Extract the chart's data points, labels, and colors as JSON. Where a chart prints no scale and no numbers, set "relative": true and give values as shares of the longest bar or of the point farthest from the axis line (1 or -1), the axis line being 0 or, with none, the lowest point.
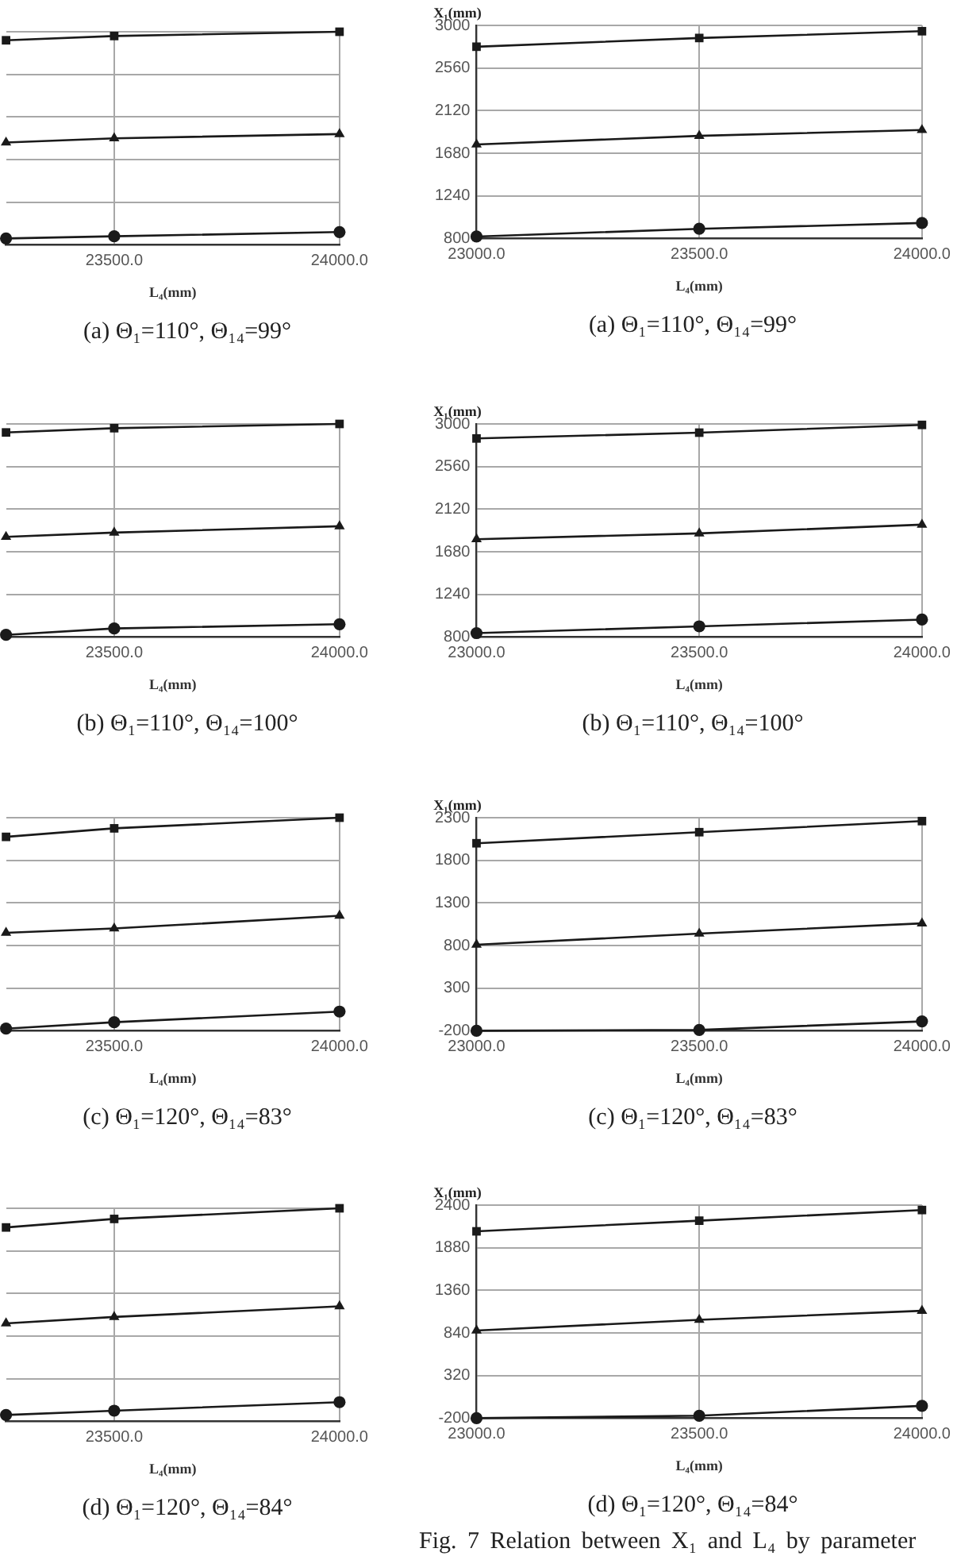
{
  "chart_data": [
    {
      "type": "line",
      "relative": true,
      "title": "(a) Θ₁=110°, Θ₁₄=99°",
      "xlabel": "L₄(mm)",
      "x": [
        23260,
        23500,
        24000
      ],
      "xlim": [
        23260,
        24000
      ],
      "xticks": [
        {
          "value": 23500,
          "label": "23500.0"
        },
        {
          "value": 24000,
          "label": "24000.0"
        }
      ],
      "grid": true,
      "series": [
        {
          "color": "#1a1a1a",
          "marker": "square",
          "values": [
            0.96,
            0.98,
            1
          ]
        },
        {
          "color": "#1a1a1a",
          "marker": "triangle",
          "values": [
            0.48,
            0.5,
            0.52
          ]
        },
        {
          "color": "#1a1a1a",
          "marker": "circle",
          "values": [
            0.03,
            0.04,
            0.06
          ]
        }
      ]
    },
    {
      "type": "line",
      "title": "(a) Θ₁=110°, Θ₁₄=99°",
      "xlabel": "L₄(mm)",
      "ylabel": "X₁(mm)",
      "x": [
        23000,
        23500,
        24000
      ],
      "xlim": [
        23000,
        24000
      ],
      "xticks": [
        {
          "value": 23000,
          "label": "23000.0"
        },
        {
          "value": 23500,
          "label": "23500.0"
        },
        {
          "value": 24000,
          "label": "24000.0"
        }
      ],
      "ylim": [
        800,
        3000
      ],
      "yticks": [
        800,
        1240,
        1680,
        2120,
        2560,
        3000
      ],
      "grid": true,
      "series": [
        {
          "color": "#1a1a1a",
          "marker": "square",
          "values": [
            2780,
            2870,
            2940
          ]
        },
        {
          "color": "#1a1a1a",
          "marker": "triangle",
          "values": [
            1770,
            1860,
            1920
          ]
        },
        {
          "color": "#1a1a1a",
          "marker": "circle",
          "values": [
            820,
            900,
            960
          ]
        }
      ]
    },
    {
      "type": "line",
      "relative": true,
      "title": "(b) Θ₁=110°, Θ₁₄=100°",
      "xlabel": "L₄(mm)",
      "x": [
        23260,
        23500,
        24000
      ],
      "xlim": [
        23260,
        24000
      ],
      "xticks": [
        {
          "value": 23500,
          "label": "23500.0"
        },
        {
          "value": 24000,
          "label": "24000.0"
        }
      ],
      "grid": true,
      "series": [
        {
          "color": "#1a1a1a",
          "marker": "square",
          "values": [
            0.96,
            0.98,
            1
          ]
        },
        {
          "color": "#1a1a1a",
          "marker": "triangle",
          "values": [
            0.47,
            0.49,
            0.52
          ]
        },
        {
          "color": "#1a1a1a",
          "marker": "circle",
          "values": [
            0.01,
            0.04,
            0.06
          ]
        }
      ]
    },
    {
      "type": "line",
      "title": "(b) Θ₁=110°, Θ₁₄=100°",
      "xlabel": "L₄(mm)",
      "ylabel": "X₁(mm)",
      "x": [
        23000,
        23500,
        24000
      ],
      "xlim": [
        23000,
        24000
      ],
      "xticks": [
        {
          "value": 23000,
          "label": "23000.0"
        },
        {
          "value": 23500,
          "label": "23500.0"
        },
        {
          "value": 24000,
          "label": "24000.0"
        }
      ],
      "ylim": [
        800,
        3000
      ],
      "yticks": [
        800,
        1240,
        1680,
        2120,
        2560,
        3000
      ],
      "grid": true,
      "series": [
        {
          "color": "#1a1a1a",
          "marker": "square",
          "values": [
            2850,
            2910,
            2990
          ]
        },
        {
          "color": "#1a1a1a",
          "marker": "triangle",
          "values": [
            1810,
            1870,
            1960
          ]
        },
        {
          "color": "#1a1a1a",
          "marker": "circle",
          "values": [
            840,
            910,
            980
          ]
        }
      ]
    },
    {
      "type": "line",
      "relative": true,
      "title": "(c) Θ₁=120°, Θ₁₄=83°",
      "xlabel": "L₄(mm)",
      "x": [
        23260,
        23500,
        24000
      ],
      "xlim": [
        23260,
        24000
      ],
      "xticks": [
        {
          "value": 23500,
          "label": "23500.0"
        },
        {
          "value": 24000,
          "label": "24000.0"
        }
      ],
      "grid": true,
      "series": [
        {
          "color": "#1a1a1a",
          "marker": "square",
          "values": [
            0.91,
            0.95,
            1
          ]
        },
        {
          "color": "#1a1a1a",
          "marker": "triangle",
          "values": [
            0.46,
            0.48,
            0.54
          ]
        },
        {
          "color": "#1a1a1a",
          "marker": "circle",
          "values": [
            0.01,
            0.04,
            0.09
          ]
        }
      ]
    },
    {
      "type": "line",
      "title": "(c) Θ₁=120°, Θ₁₄=83°",
      "xlabel": "L₄(mm)",
      "ylabel": "X₁(mm)",
      "x": [
        23000,
        23500,
        24000
      ],
      "xlim": [
        23000,
        24000
      ],
      "xticks": [
        {
          "value": 23000,
          "label": "23000.0"
        },
        {
          "value": 23500,
          "label": "23500.0"
        },
        {
          "value": 24000,
          "label": "24000.0"
        }
      ],
      "ylim": [
        -200,
        2300
      ],
      "yticks": [
        -200,
        300,
        800,
        1300,
        1800,
        2300
      ],
      "grid": true,
      "series": [
        {
          "color": "#1a1a1a",
          "marker": "square",
          "values": [
            2000,
            2130,
            2260
          ]
        },
        {
          "color": "#1a1a1a",
          "marker": "triangle",
          "values": [
            810,
            940,
            1060
          ]
        },
        {
          "color": "#1a1a1a",
          "marker": "circle",
          "values": [
            -200,
            -190,
            -90
          ]
        }
      ]
    },
    {
      "type": "line",
      "relative": true,
      "title": "(d) Θ₁=120°, Θ₁₄=84°",
      "xlabel": "L₄(mm)",
      "x": [
        23260,
        23500,
        24000
      ],
      "xlim": [
        23260,
        24000
      ],
      "xticks": [
        {
          "value": 23500,
          "label": "23500.0"
        },
        {
          "value": 24000,
          "label": "24000.0"
        }
      ],
      "grid": true,
      "series": [
        {
          "color": "#1a1a1a",
          "marker": "square",
          "values": [
            0.91,
            0.95,
            1
          ]
        },
        {
          "color": "#1a1a1a",
          "marker": "triangle",
          "values": [
            0.46,
            0.49,
            0.54
          ]
        },
        {
          "color": "#1a1a1a",
          "marker": "circle",
          "values": [
            0.03,
            0.05,
            0.09
          ]
        }
      ]
    },
    {
      "type": "line",
      "title": "(d) Θ₁=120°, Θ₁₄=84°",
      "xlabel": "L₄(mm)",
      "ylabel": "X₁(mm)",
      "x": [
        23000,
        23500,
        24000
      ],
      "xlim": [
        23000,
        24000
      ],
      "xticks": [
        {
          "value": 23000,
          "label": "23000.0"
        },
        {
          "value": 23500,
          "label": "23500.0"
        },
        {
          "value": 24000,
          "label": "24000.0"
        }
      ],
      "ylim": [
        -200,
        2400
      ],
      "yticks": [
        -200,
        320,
        840,
        1360,
        1880,
        2400
      ],
      "grid": true,
      "annotations": [
        "Fig. 7 Relation between X₁ and L₄ by parameter"
      ],
      "series": [
        {
          "color": "#1a1a1a",
          "marker": "square",
          "values": [
            2080,
            2210,
            2340
          ]
        },
        {
          "color": "#1a1a1a",
          "marker": "triangle",
          "values": [
            870,
            1000,
            1110
          ]
        },
        {
          "color": "#1a1a1a",
          "marker": "circle",
          "values": [
            -200,
            -170,
            -50
          ]
        }
      ]
    }
  ]
}
